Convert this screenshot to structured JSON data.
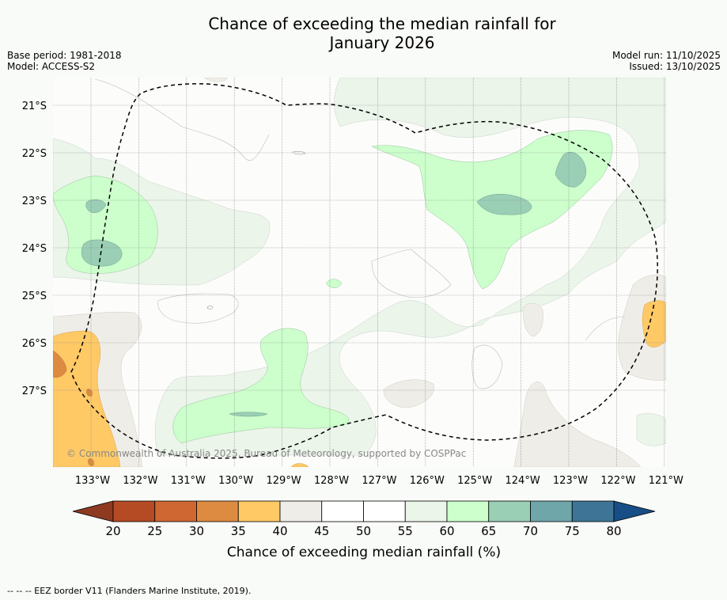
{
  "title": {
    "line1": "Chance of exceeding the median rainfall for",
    "line2": "January 2026"
  },
  "meta_left": {
    "base_period": "Base period: 1981-2018",
    "model": "Model: ACCESS-S2"
  },
  "meta_right": {
    "model_run": "Model run: 11/10/2025",
    "issued": "Issued: 13/10/2025"
  },
  "copyright": "© Commonwealth of Australia 2025, Bureau of Meteorology, supported by COSPPac",
  "lat_labels": [
    "21°S",
    "22°S",
    "23°S",
    "24°S",
    "25°S",
    "26°S",
    "27°S"
  ],
  "lon_labels": [
    "133°W",
    "132°W",
    "131°W",
    "130°W",
    "129°W",
    "128°W",
    "127°W",
    "126°W",
    "125°W",
    "124°W",
    "123°W",
    "122°W",
    "121°W"
  ],
  "colorbar": {
    "title": "Chance of exceeding median rainfall (%)",
    "ticks": [
      "20",
      "25",
      "30",
      "35",
      "40",
      "45",
      "50",
      "55",
      "60",
      "65",
      "70",
      "75",
      "80"
    ],
    "colors": [
      "#b54b24",
      "#cf6732",
      "#de8b42",
      "#ffc966",
      "#efede8",
      "#ffffff",
      "#ffffff",
      "#ebf5ea",
      "#ccffcc",
      "#9acfb6",
      "#6fa6aa",
      "#3e7596"
    ],
    "under_color": "#8d3a21",
    "over_color": "#184e86"
  },
  "footer": "--  --  -- EEZ border V11 (Flanders Marine Institute, 2019)."
}
